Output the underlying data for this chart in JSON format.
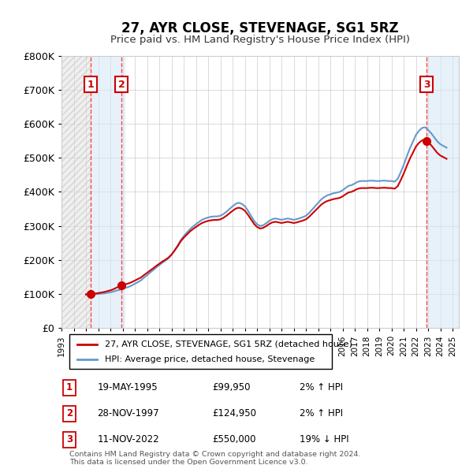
{
  "title": "27, AYR CLOSE, STEVENAGE, SG1 5RZ",
  "subtitle": "Price paid vs. HM Land Registry's House Price Index (HPI)",
  "ylabel": "",
  "xlabel": "",
  "ylim": [
    0,
    800000
  ],
  "yticks": [
    0,
    100000,
    200000,
    300000,
    400000,
    500000,
    600000,
    700000,
    800000
  ],
  "ytick_labels": [
    "£0",
    "£100K",
    "£200K",
    "£300K",
    "£400K",
    "£500K",
    "£600K",
    "£700K",
    "£800K"
  ],
  "xlim_start": 1993.0,
  "xlim_end": 2025.5,
  "sales": [
    {
      "date_num": 1995.38,
      "price": 99950,
      "label": "1"
    },
    {
      "date_num": 1997.91,
      "price": 124950,
      "label": "2"
    },
    {
      "date_num": 2022.87,
      "price": 550000,
      "label": "3"
    }
  ],
  "hpi_line": {
    "color": "#6699cc",
    "linewidth": 1.5
  },
  "price_line": {
    "color": "#cc0000",
    "linewidth": 1.5
  },
  "marker_color": "#cc0000",
  "marker_size": 7,
  "sale_vline_color": "#ff4444",
  "sale_vline_style": "dashed",
  "hatch_color": "#cccccc",
  "shade_color_left": "#e8e8e8",
  "shade_color_right": "#ddeeff",
  "legend_items": [
    "27, AYR CLOSE, STEVENAGE, SG1 5RZ (detached house)",
    "HPI: Average price, detached house, Stevenage"
  ],
  "table_rows": [
    {
      "num": "1",
      "date": "19-MAY-1995",
      "price": "£99,950",
      "hpi": "2% ↑ HPI"
    },
    {
      "num": "2",
      "date": "28-NOV-1997",
      "price": "£124,950",
      "hpi": "2% ↑ HPI"
    },
    {
      "num": "3",
      "date": "11-NOV-2022",
      "price": "£550,000",
      "hpi": "19% ↓ HPI"
    }
  ],
  "footer": "Contains HM Land Registry data © Crown copyright and database right 2024.\nThis data is licensed under the Open Government Licence v3.0.",
  "background_color": "#ffffff",
  "grid_color": "#cccccc",
  "hpi_data_x": [
    1995.0,
    1995.25,
    1995.5,
    1995.75,
    1996.0,
    1996.25,
    1996.5,
    1996.75,
    1997.0,
    1997.25,
    1997.5,
    1997.75,
    1998.0,
    1998.25,
    1998.5,
    1998.75,
    1999.0,
    1999.25,
    1999.5,
    1999.75,
    2000.0,
    2000.25,
    2000.5,
    2000.75,
    2001.0,
    2001.25,
    2001.5,
    2001.75,
    2002.0,
    2002.25,
    2002.5,
    2002.75,
    2003.0,
    2003.25,
    2003.5,
    2003.75,
    2004.0,
    2004.25,
    2004.5,
    2004.75,
    2005.0,
    2005.25,
    2005.5,
    2005.75,
    2006.0,
    2006.25,
    2006.5,
    2006.75,
    2007.0,
    2007.25,
    2007.5,
    2007.75,
    2008.0,
    2008.25,
    2008.5,
    2008.75,
    2009.0,
    2009.25,
    2009.5,
    2009.75,
    2010.0,
    2010.25,
    2010.5,
    2010.75,
    2011.0,
    2011.25,
    2011.5,
    2011.75,
    2012.0,
    2012.25,
    2012.5,
    2012.75,
    2013.0,
    2013.25,
    2013.5,
    2013.75,
    2014.0,
    2014.25,
    2014.5,
    2014.75,
    2015.0,
    2015.25,
    2015.5,
    2015.75,
    2016.0,
    2016.25,
    2016.5,
    2016.75,
    2017.0,
    2017.25,
    2017.5,
    2017.75,
    2018.0,
    2018.25,
    2018.5,
    2018.75,
    2019.0,
    2019.25,
    2019.5,
    2019.75,
    2020.0,
    2020.25,
    2020.5,
    2020.75,
    2021.0,
    2021.25,
    2021.5,
    2021.75,
    2022.0,
    2022.25,
    2022.5,
    2022.75,
    2023.0,
    2023.25,
    2023.5,
    2023.75,
    2024.0,
    2024.25,
    2024.5
  ],
  "hpi_data_y": [
    97500,
    98000,
    98500,
    99000,
    100000,
    101000,
    102000,
    103500,
    105000,
    107000,
    110000,
    112000,
    115000,
    118000,
    121000,
    125000,
    130000,
    135000,
    140000,
    148000,
    155000,
    163000,
    170000,
    178000,
    185000,
    192000,
    198000,
    205000,
    215000,
    228000,
    242000,
    258000,
    270000,
    280000,
    290000,
    298000,
    305000,
    312000,
    318000,
    322000,
    325000,
    327000,
    328000,
    328000,
    330000,
    335000,
    342000,
    350000,
    358000,
    365000,
    368000,
    365000,
    358000,
    345000,
    330000,
    315000,
    305000,
    300000,
    302000,
    308000,
    315000,
    320000,
    322000,
    320000,
    318000,
    320000,
    322000,
    320000,
    318000,
    320000,
    323000,
    326000,
    330000,
    338000,
    348000,
    358000,
    368000,
    378000,
    385000,
    390000,
    393000,
    396000,
    398000,
    400000,
    405000,
    412000,
    418000,
    420000,
    425000,
    430000,
    432000,
    432000,
    432000,
    433000,
    433000,
    432000,
    432000,
    433000,
    433000,
    432000,
    432000,
    430000,
    438000,
    458000,
    480000,
    505000,
    528000,
    548000,
    568000,
    580000,
    588000,
    590000,
    582000,
    572000,
    560000,
    548000,
    540000,
    535000,
    530000
  ]
}
